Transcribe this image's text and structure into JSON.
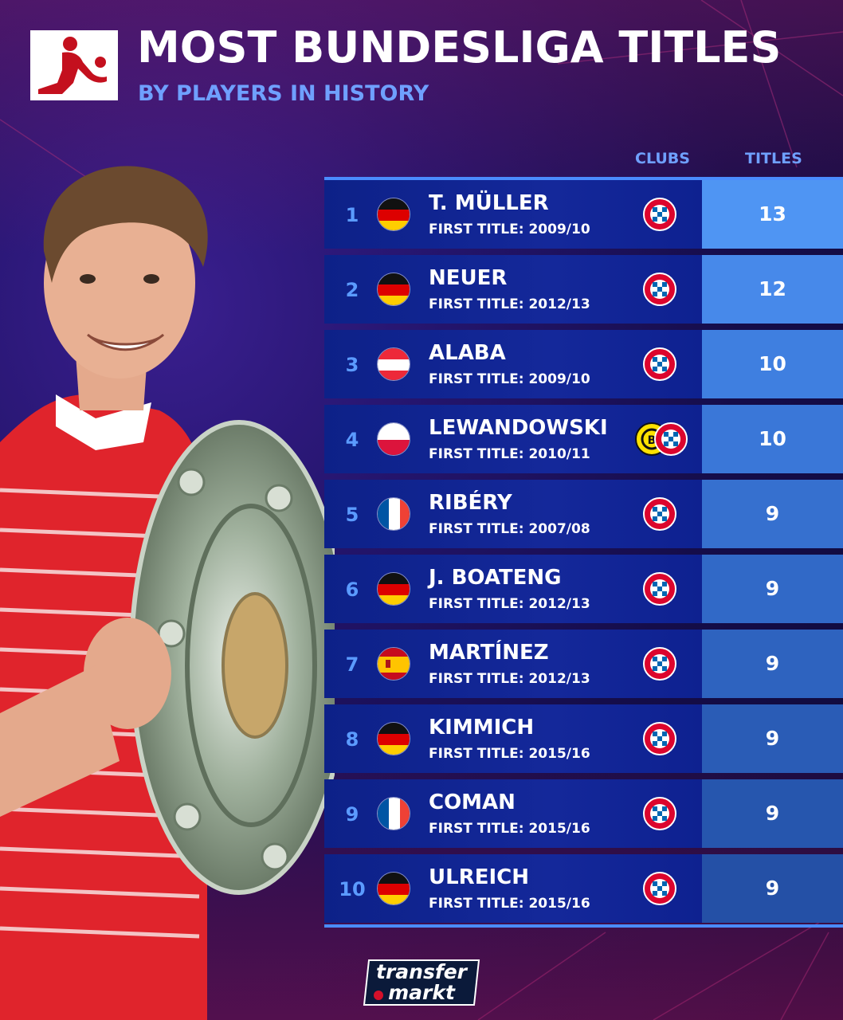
{
  "header": {
    "title": "MOST BUNDESLIGA TITLES",
    "subtitle": "BY PLAYERS IN HISTORY",
    "logo_icon": "bundesliga-logo-icon"
  },
  "columns": {
    "clubs": "CLUBS",
    "titles": "TITLES"
  },
  "rows": [
    {
      "rank": "1",
      "name": "T. MÜLLER",
      "first_title": "FIRST TITLE: 2009/10",
      "flag": "germany",
      "clubs": [
        "bayern"
      ],
      "titles": "13"
    },
    {
      "rank": "2",
      "name": "NEUER",
      "first_title": "FIRST TITLE: 2012/13",
      "flag": "germany",
      "clubs": [
        "bayern"
      ],
      "titles": "12"
    },
    {
      "rank": "3",
      "name": "ALABA",
      "first_title": "FIRST TITLE: 2009/10",
      "flag": "austria",
      "clubs": [
        "bayern"
      ],
      "titles": "10"
    },
    {
      "rank": "4",
      "name": "LEWANDOWSKI",
      "first_title": "FIRST TITLE: 2010/11",
      "flag": "poland",
      "clubs": [
        "dortmund",
        "bayern"
      ],
      "titles": "10"
    },
    {
      "rank": "5",
      "name": "RIBÉRY",
      "first_title": "FIRST TITLE: 2007/08",
      "flag": "france",
      "clubs": [
        "bayern"
      ],
      "titles": "9"
    },
    {
      "rank": "6",
      "name": "J. BOATENG",
      "first_title": "FIRST TITLE: 2012/13",
      "flag": "germany",
      "clubs": [
        "bayern"
      ],
      "titles": "9"
    },
    {
      "rank": "7",
      "name": "MARTÍNEZ",
      "first_title": "FIRST TITLE: 2012/13",
      "flag": "spain",
      "clubs": [
        "bayern"
      ],
      "titles": "9"
    },
    {
      "rank": "8",
      "name": "KIMMICH",
      "first_title": "FIRST TITLE: 2015/16",
      "flag": "germany",
      "clubs": [
        "bayern"
      ],
      "titles": "9"
    },
    {
      "rank": "9",
      "name": "COMAN",
      "first_title": "FIRST TITLE: 2015/16",
      "flag": "france",
      "clubs": [
        "bayern"
      ],
      "titles": "9"
    },
    {
      "rank": "10",
      "name": "ULREICH",
      "first_title": "FIRST TITLE: 2015/16",
      "flag": "germany",
      "clubs": [
        "bayern"
      ],
      "titles": "9"
    }
  ],
  "brand": {
    "line1": "transfer",
    "line2": "markt"
  },
  "colors": {
    "accent": "#4a8cff",
    "subtitle": "#6fa0ff",
    "titles_cells": [
      "#4f95f3",
      "#4789ea",
      "#3f7fe0",
      "#3a77d8",
      "#3670cf",
      "#3169c7",
      "#2e63bf",
      "#2a5cb6",
      "#2656ae",
      "#2450a6"
    ]
  }
}
